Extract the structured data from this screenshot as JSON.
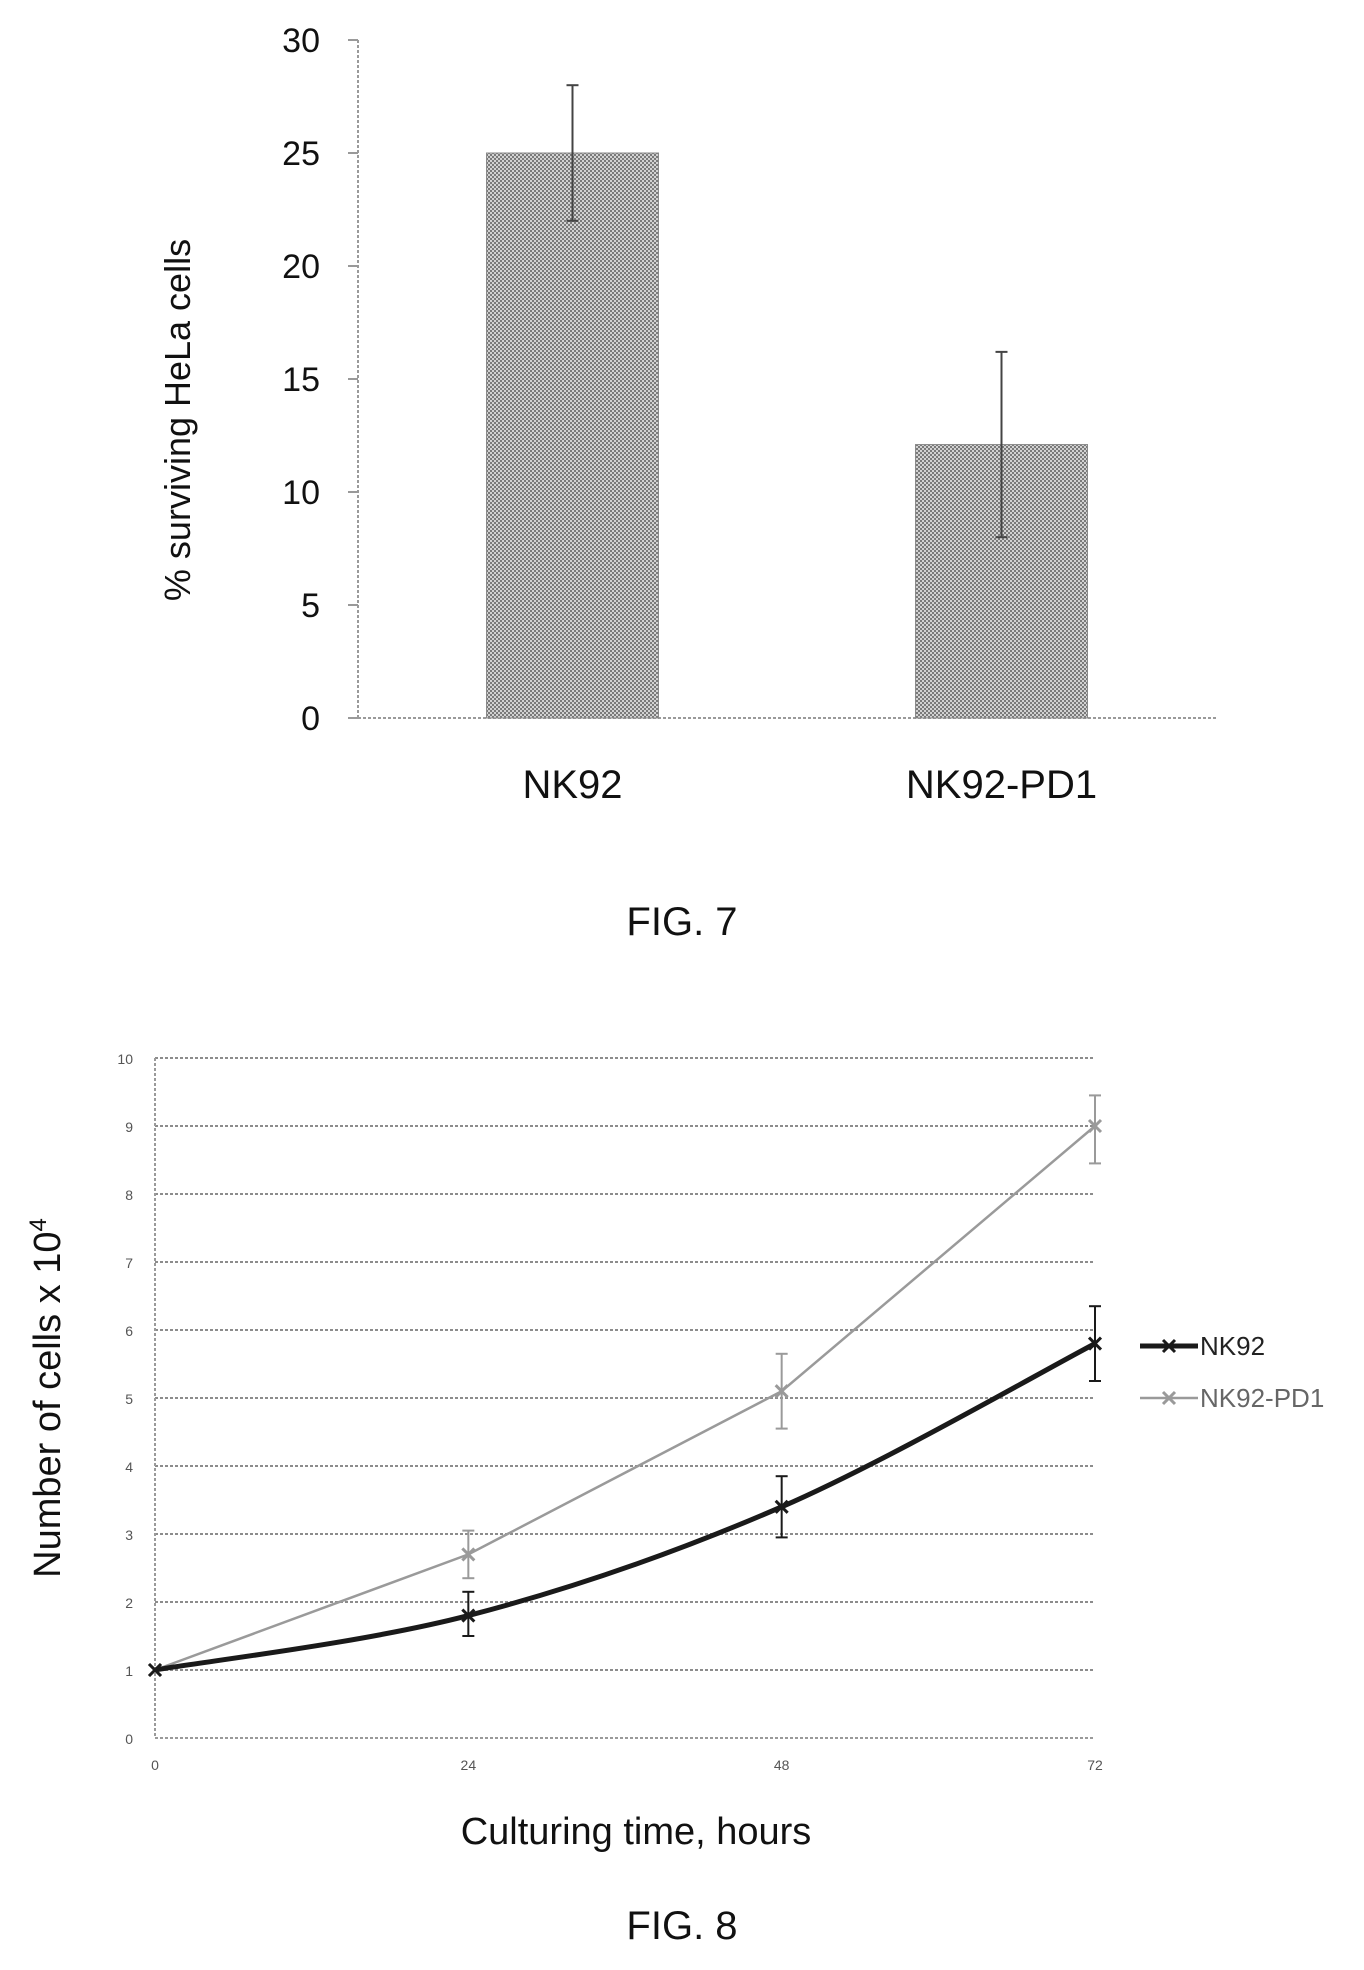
{
  "figures": [
    {
      "caption": "FIG. 7",
      "chart_data": {
        "type": "bar",
        "ylabel": "% surviving HeLa cells",
        "xlabel": "",
        "ylim": [
          0,
          30
        ],
        "yticks": [
          0,
          5,
          10,
          15,
          20,
          25,
          30
        ],
        "categories": [
          "NK92",
          "NK92-PD1"
        ],
        "values": [
          25,
          12.1
        ],
        "error_low": [
          22,
          8
        ],
        "error_high": [
          28,
          16.2
        ],
        "grid": false,
        "bar_color": "#b8b8b8"
      }
    },
    {
      "caption": "FIG. 8",
      "chart_data": {
        "type": "line",
        "xlabel": "Culturing time, hours",
        "ylabel": "Number of cells x 10",
        "ylabel_sup": "4",
        "x": [
          0,
          24,
          48,
          72
        ],
        "xticks": [
          0,
          24,
          48,
          72
        ],
        "ylim": [
          0,
          10
        ],
        "yticks": [
          0,
          1,
          2,
          3,
          4,
          5,
          6,
          7,
          8,
          9,
          10
        ],
        "grid": true,
        "legend": "right",
        "series": [
          {
            "name": "NK92",
            "values": [
              1,
              1.8,
              3.4,
              5.8
            ],
            "error_low": [
              1,
              1.5,
              2.95,
              5.25
            ],
            "error_high": [
              1,
              2.15,
              3.85,
              6.35
            ],
            "color": "#1a1a1a"
          },
          {
            "name": "NK92-PD1",
            "values": [
              1,
              2.7,
              5.1,
              9.0
            ],
            "error_low": [
              1,
              2.35,
              4.55,
              8.45
            ],
            "error_high": [
              1,
              3.05,
              5.65,
              9.45
            ],
            "color": "#9a9a9a"
          }
        ]
      }
    }
  ]
}
